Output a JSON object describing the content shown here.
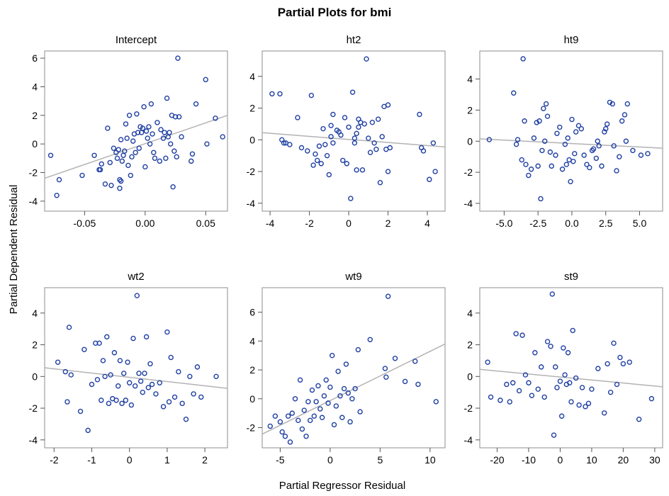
{
  "title": "Partial Plots for bmi",
  "xlabel": "Partial Regressor Residual",
  "ylabel": "Partial Dependent Residual",
  "chart_data": [
    {
      "type": "scatter",
      "title": "Intercept",
      "xlim": [
        -0.083,
        0.068
      ],
      "ylim": [
        -4.7,
        6.5
      ],
      "xticks": [
        -0.05,
        0.0,
        0.05
      ],
      "xtick_labels": [
        "-0.05",
        "0.00",
        "0.05"
      ],
      "yticks": [
        -4,
        -2,
        0,
        2,
        4,
        6
      ],
      "ytick_labels": [
        "-4",
        "-2",
        "0",
        "2",
        "4",
        "6"
      ],
      "fit": {
        "x": [
          -0.083,
          0.068
        ],
        "y": [
          -2.4,
          2.0
        ]
      },
      "x": [
        -0.078,
        -0.073,
        -0.071,
        -0.052,
        -0.042,
        -0.038,
        -0.037,
        -0.036,
        -0.033,
        -0.031,
        -0.029,
        -0.028,
        -0.026,
        -0.024,
        -0.023,
        -0.022,
        -0.021,
        -0.021,
        -0.02,
        -0.02,
        -0.019,
        -0.018,
        -0.017,
        -0.016,
        -0.015,
        -0.014,
        -0.013,
        -0.012,
        -0.011,
        -0.01,
        -0.009,
        -0.008,
        -0.007,
        -0.006,
        -0.005,
        -0.004,
        -0.003,
        -0.002,
        -0.001,
        0.0,
        0.001,
        0.002,
        0.003,
        0.004,
        0.005,
        0.006,
        0.007,
        0.008,
        0.01,
        0.012,
        0.013,
        0.015,
        0.016,
        0.017,
        0.018,
        0.019,
        0.02,
        0.021,
        0.022,
        0.023,
        0.024,
        0.025,
        0.026,
        0.027,
        0.028,
        0.03,
        0.038,
        0.039,
        0.042,
        0.05,
        0.051,
        0.058,
        0.064
      ],
      "y": [
        -0.8,
        -3.6,
        -2.5,
        -2.2,
        -0.8,
        -1.8,
        -1.8,
        -1.4,
        -2.8,
        1.1,
        -1.3,
        -2.9,
        -0.3,
        -0.6,
        -1.0,
        -0.4,
        -3.1,
        -2.5,
        0.3,
        -2.6,
        -1.2,
        -0.8,
        -0.5,
        1.4,
        0.4,
        -1.5,
        2.0,
        -2.2,
        -0.9,
        0.2,
        0.7,
        -0.6,
        2.1,
        0.8,
        -0.3,
        1.2,
        0.8,
        1.1,
        2.6,
        -1.6,
        0.9,
        0.4,
        1.2,
        0.0,
        2.8,
        0.7,
        -0.6,
        -1.0,
        1.5,
        -1.2,
        1.0,
        0.4,
        0.8,
        -1.0,
        3.2,
        0.5,
        0.8,
        0.0,
        2.0,
        -3.0,
        -0.5,
        1.9,
        -0.9,
        6.0,
        1.9,
        0.5,
        -1.2,
        -0.7,
        2.8,
        4.5,
        0.0,
        1.8,
        0.5
      ]
    },
    {
      "type": "scatter",
      "title": "ht2",
      "xlim": [
        -4.4,
        4.9
      ],
      "ylim": [
        -4.5,
        5.6
      ],
      "xticks": [
        -4,
        -2,
        0,
        2,
        4
      ],
      "xtick_labels": [
        "-4",
        "-2",
        "0",
        "2",
        "4"
      ],
      "yticks": [
        -4,
        -2,
        0,
        2,
        4
      ],
      "ytick_labels": [
        "-4",
        "-2",
        "0",
        "2",
        "4"
      ],
      "fit": {
        "x": [
          -4.4,
          4.9
        ],
        "y": [
          0.45,
          -0.45
        ]
      },
      "x": [
        -3.9,
        -3.5,
        -3.4,
        -3.3,
        -3.2,
        -3.0,
        -2.6,
        -2.4,
        -2.1,
        -1.9,
        -1.8,
        -1.7,
        -1.6,
        -1.5,
        -1.4,
        -1.3,
        -1.2,
        -1.1,
        -1.0,
        -0.9,
        -0.9,
        -0.8,
        -0.8,
        -0.6,
        -0.5,
        -0.4,
        -0.3,
        -0.2,
        -0.1,
        0.0,
        0.1,
        0.2,
        0.3,
        0.3,
        0.4,
        0.4,
        0.5,
        0.5,
        0.6,
        0.7,
        0.8,
        0.9,
        1.0,
        1.1,
        1.2,
        1.3,
        1.4,
        1.5,
        1.6,
        1.7,
        1.8,
        1.9,
        2.0,
        2.0,
        2.1,
        3.6,
        3.7,
        3.8,
        4.1,
        4.3,
        4.4
      ],
      "y": [
        2.9,
        2.9,
        0.0,
        -0.2,
        -0.2,
        -0.3,
        1.4,
        -0.5,
        -0.7,
        2.8,
        -1.6,
        -0.9,
        -1.3,
        -0.4,
        -1.5,
        0.7,
        -0.3,
        -1.0,
        -2.2,
        0.9,
        0.2,
        -0.2,
        1.6,
        0.6,
        0.5,
        0.3,
        -1.3,
        1.4,
        -1.5,
        0.8,
        -3.7,
        3.0,
        0.1,
        -0.2,
        -1.9,
        0.4,
        0.8,
        1.3,
        1.1,
        -1.9,
        1.0,
        5.1,
        0.1,
        -0.8,
        1.1,
        -0.2,
        -0.6,
        1.3,
        -2.7,
        0.2,
        2.1,
        -0.6,
        2.2,
        -2.0,
        -0.5,
        1.6,
        -0.5,
        -0.7,
        -2.5,
        -0.2,
        -2.0
      ]
    },
    {
      "type": "scatter",
      "title": "ht9",
      "xlim": [
        -6.8,
        6.7
      ],
      "ylim": [
        -4.5,
        5.8
      ],
      "xticks": [
        -5.0,
        -2.5,
        0.0,
        2.5,
        5.0
      ],
      "xtick_labels": [
        "-5.0",
        "-2.5",
        "0.0",
        "2.5",
        "5.0"
      ],
      "yticks": [
        -4,
        -2,
        0,
        2,
        4
      ],
      "ytick_labels": [
        "-4",
        "-2",
        "0",
        "2",
        "4"
      ],
      "fit": {
        "x": [
          -6.8,
          6.7
        ],
        "y": [
          0.15,
          -0.45
        ]
      },
      "x": [
        -6.1,
        -4.3,
        -4.1,
        -4.0,
        -3.7,
        -3.6,
        -3.5,
        -3.4,
        -3.2,
        -3.0,
        -2.8,
        -2.6,
        -2.5,
        -2.4,
        -2.3,
        -2.2,
        -2.1,
        -2.0,
        -1.9,
        -1.8,
        -1.6,
        -1.5,
        -1.2,
        -1.1,
        -0.9,
        -0.7,
        -0.5,
        -0.4,
        -0.3,
        -0.2,
        -0.1,
        0.0,
        0.1,
        0.2,
        0.3,
        0.5,
        0.7,
        0.9,
        1.1,
        1.3,
        1.5,
        1.6,
        1.8,
        1.9,
        2.0,
        2.2,
        2.4,
        2.5,
        2.6,
        2.8,
        3.0,
        3.1,
        3.3,
        3.5,
        3.7,
        3.9,
        4.0,
        4.1,
        4.5,
        5.1,
        5.6
      ],
      "y": [
        0.1,
        3.1,
        -0.2,
        0.1,
        -1.2,
        5.3,
        1.3,
        -1.5,
        -2.2,
        -1.8,
        0.2,
        1.2,
        -1.6,
        1.3,
        -3.7,
        -0.6,
        2.1,
        0.0,
        2.4,
        1.6,
        -0.7,
        -1.6,
        -0.9,
        0.5,
        0.9,
        -1.8,
        -0.2,
        -1.5,
        0.2,
        -1.2,
        -2.6,
        1.4,
        -1.3,
        -0.8,
        0.6,
        1.0,
        0.8,
        -0.9,
        -1.5,
        -1.7,
        -0.6,
        -0.5,
        -1.1,
        0.0,
        -0.3,
        -1.6,
        0.6,
        0.8,
        1.1,
        2.5,
        2.4,
        -0.3,
        -1.9,
        -1.0,
        1.3,
        1.7,
        0.0,
        2.4,
        -0.6,
        -0.9,
        -0.8
      ]
    },
    {
      "type": "scatter",
      "title": "wt2",
      "xlim": [
        -2.25,
        2.6
      ],
      "ylim": [
        -4.5,
        5.6
      ],
      "xticks": [
        -2,
        -1,
        0,
        1,
        2
      ],
      "xtick_labels": [
        "-2",
        "-1",
        "0",
        "1",
        "2"
      ],
      "yticks": [
        -4,
        -2,
        0,
        2,
        4
      ],
      "ytick_labels": [
        "-4",
        "-2",
        "0",
        "2",
        "4"
      ],
      "fit": {
        "x": [
          -2.25,
          2.6
        ],
        "y": [
          0.55,
          -0.75
        ]
      },
      "x": [
        -1.9,
        -1.7,
        -1.65,
        -1.6,
        -1.55,
        -1.3,
        -1.2,
        -1.1,
        -1.0,
        -0.9,
        -0.85,
        -0.8,
        -0.75,
        -0.7,
        -0.65,
        -0.6,
        -0.55,
        -0.5,
        -0.45,
        -0.4,
        -0.35,
        -0.3,
        -0.25,
        -0.2,
        -0.15,
        -0.1,
        -0.05,
        0.0,
        0.05,
        0.1,
        0.15,
        0.2,
        0.25,
        0.3,
        0.35,
        0.4,
        0.45,
        0.5,
        0.55,
        0.6,
        0.7,
        0.8,
        0.9,
        1.0,
        1.05,
        1.1,
        1.2,
        1.3,
        1.4,
        1.5,
        1.6,
        1.7,
        1.8,
        1.9,
        2.3
      ],
      "y": [
        0.9,
        0.3,
        -1.6,
        3.1,
        0.1,
        -2.2,
        1.7,
        -3.4,
        -0.5,
        2.1,
        -0.2,
        2.1,
        -1.5,
        1.0,
        0.0,
        2.5,
        -1.7,
        0.1,
        -1.4,
        1.5,
        -1.5,
        -0.6,
        1.0,
        -1.7,
        0.2,
        -1.5,
        0.9,
        -0.4,
        -1.8,
        2.4,
        -0.6,
        5.1,
        0.2,
        -0.3,
        -1.0,
        0.2,
        2.5,
        -0.7,
        0.8,
        -0.5,
        -1.1,
        -0.4,
        -1.9,
        2.8,
        -1.6,
        1.2,
        -1.3,
        0.3,
        -1.7,
        -2.7,
        0.0,
        -1.1,
        0.6,
        -1.3,
        0.0
      ]
    },
    {
      "type": "scatter",
      "title": "wt9",
      "xlim": [
        -6.8,
        11.5
      ],
      "ylim": [
        -3.4,
        7.7
      ],
      "xticks": [
        -5,
        0,
        5,
        10
      ],
      "xtick_labels": [
        "-5",
        "0",
        "5",
        "10"
      ],
      "yticks": [
        -2,
        0,
        2,
        4,
        6
      ],
      "ytick_labels": [
        "-2",
        "0",
        "2",
        "4",
        "6"
      ],
      "fit": {
        "x": [
          -6.8,
          11.5
        ],
        "y": [
          -2.45,
          3.8
        ]
      },
      "x": [
        -6.0,
        -5.5,
        -5.0,
        -4.8,
        -4.5,
        -4.2,
        -4.0,
        -3.8,
        -3.5,
        -3.2,
        -3.0,
        -2.8,
        -2.6,
        -2.4,
        -2.2,
        -2.0,
        -1.8,
        -1.6,
        -1.4,
        -1.2,
        -1.0,
        -0.8,
        -0.6,
        -0.4,
        -0.2,
        0.0,
        0.2,
        0.4,
        0.6,
        0.8,
        1.0,
        1.2,
        1.4,
        1.6,
        1.8,
        2.0,
        2.2,
        2.5,
        2.8,
        3.0,
        4.0,
        5.5,
        5.6,
        5.8,
        6.5,
        7.5,
        8.5,
        8.8,
        10.6
      ],
      "y": [
        -1.9,
        -1.2,
        -1.6,
        -2.3,
        -2.6,
        -1.2,
        -3.0,
        -1.0,
        0.0,
        -1.5,
        1.3,
        -2.1,
        -0.8,
        -2.6,
        -0.2,
        -1.5,
        0.6,
        -1.2,
        -0.2,
        0.9,
        -0.7,
        -1.3,
        0.2,
        1.3,
        -0.3,
        0.8,
        3.0,
        -1.8,
        -0.5,
        1.9,
        0.2,
        -1.3,
        0.7,
        2.4,
        0.4,
        -1.6,
        0.0,
        0.7,
        3.4,
        -0.9,
        4.1,
        2.1,
        1.5,
        7.1,
        2.8,
        1.2,
        2.6,
        1.0,
        -0.2
      ]
    },
    {
      "type": "scatter",
      "title": "st9",
      "xlim": [
        -25.5,
        32.5
      ],
      "ylim": [
        -4.5,
        5.6
      ],
      "xticks": [
        -20,
        -10,
        0,
        10,
        20,
        30
      ],
      "xtick_labels": [
        "-20",
        "-10",
        "0",
        "10",
        "20",
        "30"
      ],
      "yticks": [
        -4,
        -2,
        0,
        2,
        4
      ],
      "ytick_labels": [
        "-4",
        "-2",
        "0",
        "2",
        "4"
      ],
      "fit": {
        "x": [
          -25.5,
          32.5
        ],
        "y": [
          0.45,
          -0.65
        ]
      },
      "x": [
        -23,
        -22,
        -19,
        -17,
        -16,
        -15,
        -14,
        -13,
        -12,
        -11,
        -10,
        -9,
        -8,
        -7,
        -6,
        -5,
        -4,
        -3,
        -2.5,
        -2,
        -1.5,
        -1,
        0,
        0.5,
        1,
        1.5,
        2,
        2.5,
        3,
        3.5,
        4,
        5,
        6,
        7,
        8,
        9,
        10,
        12,
        14,
        15,
        16,
        17,
        18,
        19,
        20,
        22,
        25,
        29
      ],
      "y": [
        0.9,
        -1.3,
        -1.5,
        -0.5,
        -1.6,
        -0.4,
        2.7,
        -0.9,
        2.6,
        0.1,
        -0.4,
        -1.2,
        1.5,
        -0.8,
        0.6,
        -1.3,
        2.2,
        1.9,
        5.2,
        -3.7,
        0.6,
        -0.7,
        -0.3,
        -2.5,
        1.8,
        0.1,
        -0.5,
        1.5,
        -0.4,
        -1.6,
        2.9,
        -0.1,
        -1.8,
        -0.7,
        -1.9,
        -1.7,
        -0.8,
        0.5,
        -2.3,
        0.8,
        -1.0,
        2.1,
        -0.5,
        1.2,
        0.8,
        0.9,
        -2.7,
        -1.4
      ]
    }
  ]
}
